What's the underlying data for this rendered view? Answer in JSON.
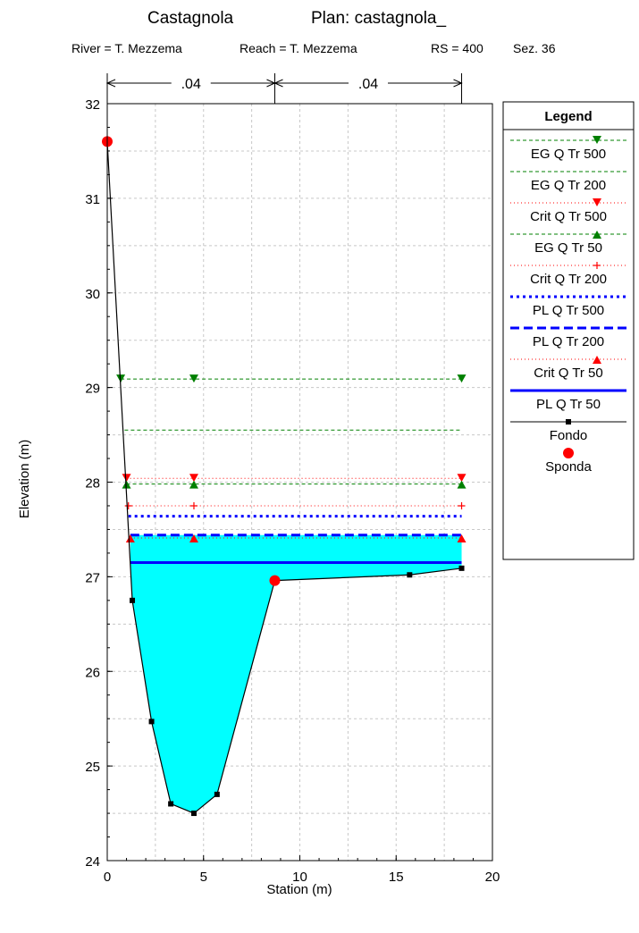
{
  "header": {
    "title_left": "Castagnola",
    "title_right": "Plan: castagnola_",
    "river": "River = T. Mezzema",
    "reach": "Reach = T. Mezzema",
    "rs": "RS = 400",
    "section": "Sez. 36"
  },
  "chart_data": {
    "type": "line",
    "xlabel": "Station (m)",
    "ylabel": "Elevation (m)",
    "xlim": [
      0,
      20
    ],
    "ylim": [
      24,
      32
    ],
    "xticks": [
      0,
      5,
      10,
      15,
      20
    ],
    "yticks": [
      24,
      25,
      26,
      27,
      28,
      29,
      30,
      31,
      32
    ],
    "grid": true,
    "legend_position": "right",
    "legend_title": "Legend",
    "manning_n": {
      "labels": [
        ".04",
        ".04"
      ],
      "breaks": [
        0,
        8.7,
        18.4
      ]
    },
    "fondo": {
      "name": "Fondo",
      "x": [
        0,
        1.3,
        2.3,
        3.3,
        4.5,
        5.7,
        8.7,
        15.7,
        18.4
      ],
      "y": [
        31.6,
        26.75,
        25.47,
        24.6,
        24.5,
        24.7,
        26.96,
        27.02,
        27.09
      ]
    },
    "sponda": {
      "name": "Sponda",
      "x": [
        0,
        8.7
      ],
      "y": [
        31.6,
        26.96
      ]
    },
    "water_fill": {
      "x_left": 1.2,
      "x_right": 18.4,
      "y": 27.44
    },
    "series": [
      {
        "name": "EG Q Tr 500",
        "y": 29.09,
        "x_start": 0.7,
        "x_end": 18.4,
        "color": "#008000",
        "style": "dashed",
        "marker": "tri-down",
        "marker_x": [
          0.7,
          4.5,
          18.4
        ]
      },
      {
        "name": "EG Q Tr 200",
        "y": 28.55,
        "x_start": 0.9,
        "x_end": 18.4,
        "color": "#008000",
        "style": "dashed",
        "marker": "none",
        "marker_x": []
      },
      {
        "name": "Crit Q Tr 500",
        "y": 28.04,
        "x_start": 1.0,
        "x_end": 18.4,
        "color": "#ff0000",
        "style": "dotted",
        "marker": "tri-down",
        "marker_x": [
          1.0,
          4.5,
          18.4
        ]
      },
      {
        "name": "EG Q Tr 50",
        "y": 27.98,
        "x_start": 1.0,
        "x_end": 18.4,
        "color": "#008000",
        "style": "dashed",
        "marker": "tri-up",
        "marker_x": [
          1.0,
          4.5,
          18.4
        ]
      },
      {
        "name": "Crit Q Tr 200",
        "y": 27.75,
        "x_start": 1.1,
        "x_end": 18.4,
        "color": "#ff0000",
        "style": "dotted",
        "marker": "plus",
        "marker_x": [
          1.1,
          4.5,
          18.4
        ]
      },
      {
        "name": "PL Q Tr 500",
        "y": 27.64,
        "x_start": 1.1,
        "x_end": 18.4,
        "color": "#0000ff",
        "style": "dotted-thick",
        "marker": "none",
        "marker_x": []
      },
      {
        "name": "PL Q Tr 200",
        "y": 27.44,
        "x_start": 1.2,
        "x_end": 18.4,
        "color": "#0000ff",
        "style": "dashed-thick",
        "marker": "none",
        "marker_x": []
      },
      {
        "name": "Crit Q Tr 50",
        "y": 27.41,
        "x_start": 1.2,
        "x_end": 18.4,
        "color": "#ff0000",
        "style": "dotted",
        "marker": "tri-up",
        "marker_x": [
          1.2,
          4.5,
          18.4
        ]
      },
      {
        "name": "PL Q Tr 50",
        "y": 27.15,
        "x_start": 1.2,
        "x_end": 18.4,
        "color": "#0000ff",
        "style": "solid-thick",
        "marker": "none",
        "marker_x": []
      }
    ]
  }
}
